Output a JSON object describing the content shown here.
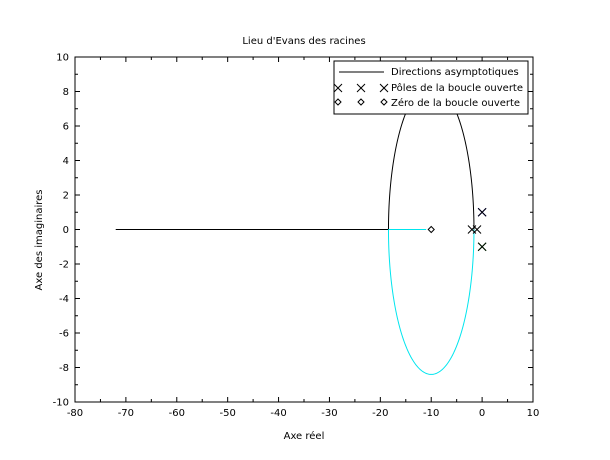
{
  "chart_data": {
    "type": "line",
    "title": "Lieu d'Evans des racines",
    "xlabel": "Axe réel",
    "ylabel": "Axe des imaginaires",
    "xlim": [
      -80,
      10
    ],
    "ylim": [
      -10,
      10
    ],
    "x_ticks": [
      -80,
      -70,
      -60,
      -50,
      -40,
      -30,
      -20,
      -10,
      0,
      10
    ],
    "y_ticks": [
      -10,
      -8,
      -6,
      -4,
      -2,
      0,
      2,
      4,
      6,
      8,
      10
    ],
    "grid": false,
    "legend_position": "top-right",
    "legend": [
      {
        "label": "Directions asymptotiques",
        "marker": "line",
        "color": "#000000"
      },
      {
        "label": "Pôles de la boucle ouverte",
        "marker": "x",
        "color": "#000000"
      },
      {
        "label": "Zéro de la boucle ouverte",
        "marker": "diamond",
        "color": "#000000"
      }
    ],
    "series": [
      {
        "color": "#000000",
        "points": [
          [
            -72,
            0
          ],
          [
            -18.4,
            0
          ]
        ]
      },
      {
        "color": "#000000",
        "ellipse": {
          "cx": -10,
          "cy": 0,
          "rx": 8.4,
          "ry": 8.4,
          "half": "upper"
        }
      },
      {
        "color": "#00e5ee",
        "ellipse": {
          "cx": -10,
          "cy": 0,
          "rx": 8.4,
          "ry": 8.4,
          "half": "lower"
        }
      },
      {
        "color": "#00e5ee",
        "points": [
          [
            -18.4,
            0
          ],
          [
            -11,
            0
          ]
        ]
      }
    ],
    "poles": [
      [
        0,
        1
      ],
      [
        0,
        -1
      ],
      [
        -1,
        0
      ],
      [
        -2,
        0
      ]
    ],
    "zeros": [
      [
        -10,
        0
      ]
    ],
    "pole_near_markers": [
      {
        "x": 0,
        "y": 1,
        "color": "#0000cc"
      },
      {
        "x": 0,
        "y": -1,
        "color": "#00aa00"
      }
    ]
  }
}
